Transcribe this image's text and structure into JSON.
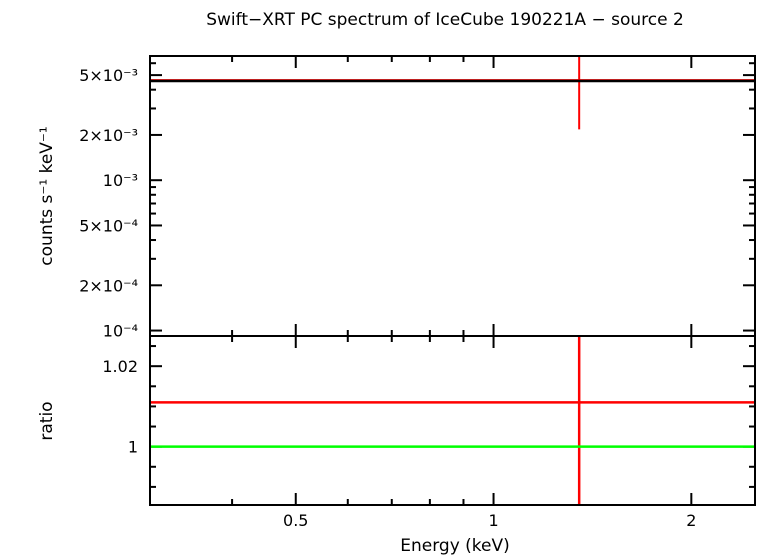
{
  "chart_data": [
    {
      "type": "line",
      "panel": "spectrum",
      "title": "Swift−XRT PC spectrum of IceCube 190221A − source 2",
      "ylabel": "counts s⁻¹ keV⁻¹",
      "xlabel": "",
      "x_scale": "log",
      "y_scale": "log",
      "xlim": [
        0.3,
        2.5
      ],
      "ylim": [
        9.2e-05,
        0.0067
      ],
      "y_ticks": [
        {
          "value": 0.005,
          "label": "5×10⁻³"
        },
        {
          "value": 0.002,
          "label": "2×10⁻³"
        },
        {
          "value": 0.001,
          "label": "10⁻³"
        },
        {
          "value": 0.0005,
          "label": "5×10⁻⁴"
        },
        {
          "value": 0.0002,
          "label": "2×10⁻⁴"
        },
        {
          "value": 0.0001,
          "label": "10⁻⁴"
        }
      ],
      "series": [
        {
          "kind": "data",
          "color": "#ff0000",
          "points": [
            {
              "x": 1.35,
              "y": 0.00463,
              "x_lo": 0.3,
              "x_hi": 2.5,
              "y_lo": 0.00218,
              "y_hi": 0.0067
            }
          ]
        },
        {
          "kind": "model",
          "color": "#000000",
          "x": [
            0.3,
            2.5
          ],
          "y": [
            0.00457,
            0.00457
          ]
        }
      ]
    },
    {
      "type": "line",
      "panel": "ratio",
      "ylabel": "ratio",
      "xlabel": "Energy (keV)",
      "x_scale": "log",
      "y_scale": "linear",
      "xlim": [
        0.3,
        2.5
      ],
      "ylim": [
        0.9855,
        1.0275
      ],
      "x_ticks": [
        {
          "value": 0.5,
          "label": "0.5"
        },
        {
          "value": 1,
          "label": "1"
        },
        {
          "value": 2,
          "label": "2"
        }
      ],
      "y_ticks": [
        {
          "value": 1.02,
          "label": "1.02"
        },
        {
          "value": 1,
          "label": "1"
        }
      ],
      "series": [
        {
          "kind": "data",
          "color": "#ff0000",
          "points": [
            {
              "x": 1.35,
              "y": 1.011,
              "x_lo": 0.3,
              "x_hi": 2.5,
              "y_lo": 0.9855,
              "y_hi": 1.0275
            }
          ]
        },
        {
          "kind": "reference",
          "color": "#00ff00",
          "x": [
            0.3,
            2.5
          ],
          "y": [
            1,
            1
          ]
        }
      ]
    }
  ]
}
